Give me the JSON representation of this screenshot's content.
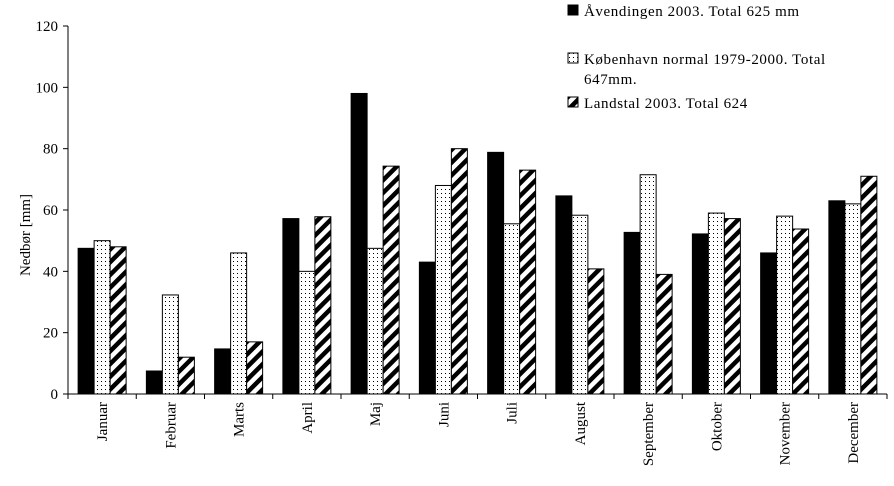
{
  "chart_data": {
    "type": "bar",
    "categories": [
      "Januar",
      "Februar",
      "Marts",
      "April",
      "Maj",
      "Juni",
      "Juli",
      "August",
      "September",
      "Oktober",
      "November",
      "December"
    ],
    "series": [
      {
        "name": "Åvendingen 2003. Total 625 mm",
        "fill": "solid",
        "color": "#000000",
        "values": [
          47.5,
          7.5,
          14.7,
          57.2,
          98,
          43,
          78.8,
          64.6,
          52.7,
          52.2,
          46,
          63
        ]
      },
      {
        "name": "København normal 1979-2000. Total 647mm.",
        "fill": "dots",
        "color": "#ffffff",
        "values": [
          50,
          32.3,
          46,
          40,
          47.5,
          68,
          55.5,
          58.3,
          71.5,
          59,
          58,
          62
        ]
      },
      {
        "name": "Landstal 2003. Total 624",
        "fill": "diagonal-stripes",
        "color": "#000000",
        "values": [
          48,
          12,
          17,
          57.8,
          74.3,
          80,
          73,
          40.8,
          39,
          57.2,
          53.8,
          71
        ]
      }
    ],
    "legend_lines": [
      [
        "Åvendingen 2003. Total 625 mm"
      ],
      [
        "København normal 1979-2000. Total",
        "647mm."
      ],
      [
        "Landstal 2003. Total 624"
      ]
    ],
    "title": "",
    "xlabel": "",
    "ylabel": "Nedbør [mm]",
    "ylim": [
      0,
      120
    ],
    "yticks": [
      0,
      20,
      40,
      60,
      80,
      100,
      120
    ],
    "grid": false,
    "legend_position": "top-right"
  }
}
